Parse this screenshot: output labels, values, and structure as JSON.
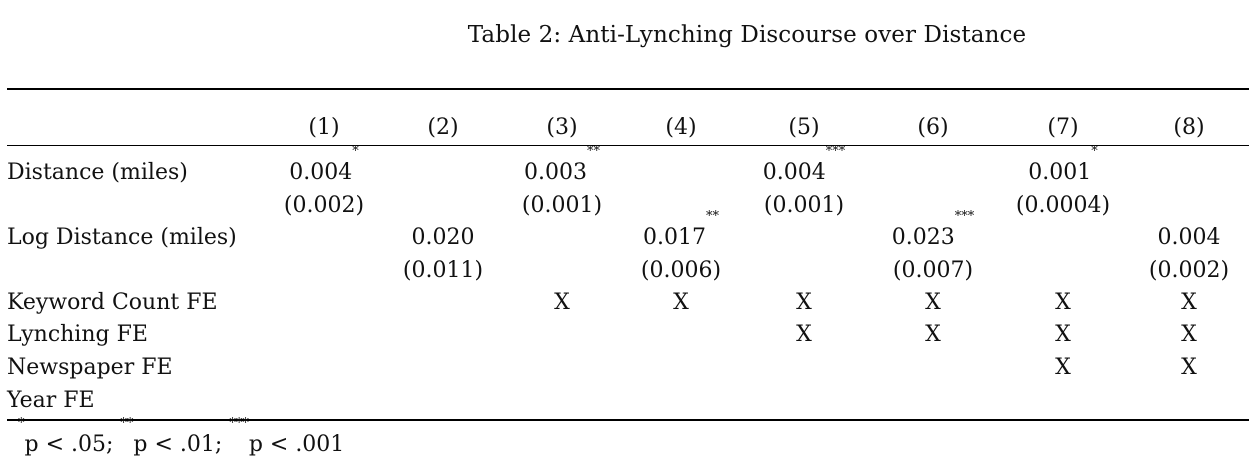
{
  "caption": "Table 2: Anti-Lynching Discourse over Distance",
  "columns": [
    "(1)",
    "(2)",
    "(3)",
    "(4)",
    "(5)",
    "(6)",
    "(7)",
    "(8)"
  ],
  "rows": {
    "distance": {
      "label": "Distance (miles)",
      "coef": [
        "0.004",
        "",
        "0.003",
        "",
        "0.004",
        "",
        "0.001",
        ""
      ],
      "stars": [
        "*",
        "",
        "**",
        "",
        "***",
        "",
        "*",
        ""
      ],
      "se": [
        "(0.002)",
        "",
        "(0.001)",
        "",
        "(0.001)",
        "",
        "(0.0004)",
        ""
      ]
    },
    "log_distance": {
      "label": "Log Distance (miles)",
      "coef": [
        "",
        "0.020",
        "",
        "0.017",
        "",
        "0.023",
        "",
        "0.004"
      ],
      "stars": [
        "",
        "",
        "",
        "**",
        "",
        "***",
        "",
        ""
      ],
      "se": [
        "",
        "(0.011)",
        "",
        "(0.006)",
        "",
        "(0.007)",
        "",
        "(0.002)"
      ]
    },
    "keyword_fe": {
      "label": "Keyword Count FE",
      "marks": [
        "",
        "",
        "X",
        "X",
        "X",
        "X",
        "X",
        "X"
      ]
    },
    "lynching_fe": {
      "label": "Lynching FE",
      "marks": [
        "",
        "",
        "",
        "",
        "X",
        "X",
        "X",
        "X"
      ]
    },
    "newspaper_fe": {
      "label": "Newspaper FE",
      "marks": [
        "",
        "",
        "",
        "",
        "",
        "",
        "X",
        "X"
      ]
    },
    "year_fe": {
      "label": "Year FE",
      "marks": [
        "",
        "",
        "",
        "",
        "",
        "",
        "",
        ""
      ]
    }
  },
  "note": {
    "s1": "*",
    "t1": "p < .05; ",
    "s2": "**",
    "t2": "p < .01; ",
    "s3": "***",
    "t3": "p < .001"
  }
}
